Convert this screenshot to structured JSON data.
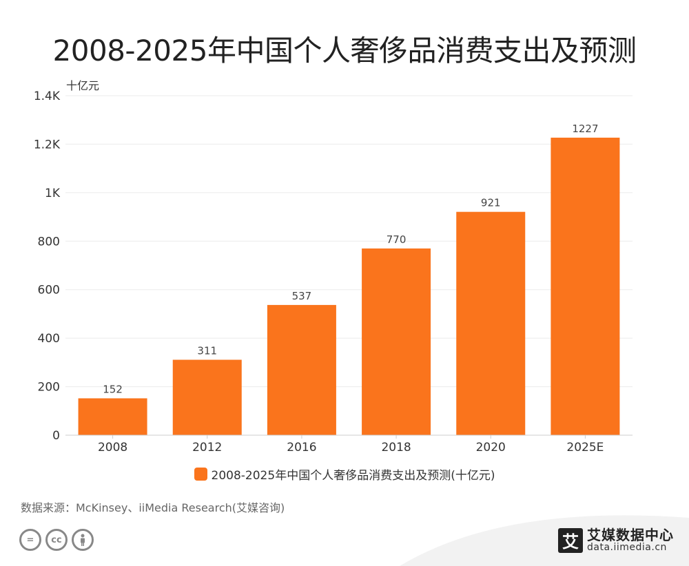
{
  "title": "2008-2025年中国个人奢侈品消费支出及预测",
  "source": "数据来源：McKinsey、iiMedia Research(艾媒咨询)",
  "brand": {
    "logo_char": "艾",
    "name": "艾媒数据中心",
    "url": "data.iimedia.cn"
  },
  "license_icons": [
    "=",
    "cc",
    "person"
  ],
  "colors": {
    "bar": "#fa741c",
    "grid": "#ebebeb",
    "axis": "#cccccc"
  },
  "chart_data": {
    "type": "bar",
    "title": "2008-2025年中国个人奢侈品消费支出及预测",
    "ylabel": "十亿元",
    "xlabel": "",
    "categories": [
      "2008",
      "2012",
      "2016",
      "2018",
      "2020",
      "2025E"
    ],
    "series": [
      {
        "name": "2008-2025年中国个人奢侈品消费支出及预测(十亿元)",
        "values": [
          152,
          311,
          537,
          770,
          921,
          1227
        ]
      }
    ],
    "ylim": [
      0,
      1400
    ],
    "yticks": [
      0,
      200,
      400,
      600,
      800,
      1000,
      1200,
      1400
    ],
    "ytick_labels": [
      "0",
      "200",
      "400",
      "600",
      "800",
      "1K",
      "1.2K",
      "1.4K"
    ],
    "data_labels": [
      "152",
      "311",
      "537",
      "770",
      "921",
      "1227"
    ],
    "grid": true,
    "legend": "bottom"
  }
}
